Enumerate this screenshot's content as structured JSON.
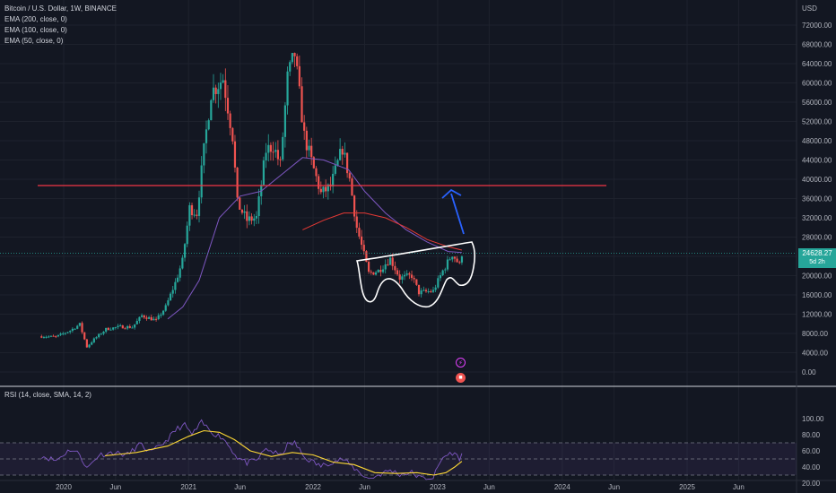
{
  "chart_data": [
    {
      "type": "candlestick",
      "title": "Bitcoin / U.S. Dollar, 1W, BINANCE",
      "currency": "USD",
      "ylim": [
        0,
        76000
      ],
      "y_ticks": [
        "72000.00",
        "68000.00",
        "64000.00",
        "60000.00",
        "56000.00",
        "52000.00",
        "48000.00",
        "44000.00",
        "40000.00",
        "36000.00",
        "32000.00",
        "28000.00",
        "24000.00",
        "20000.00",
        "16000.00",
        "12000.00",
        "8000.00",
        "4000.00",
        "0.00"
      ],
      "x_ticks": [
        "2020",
        "Jun",
        "2021",
        "Jun",
        "2022",
        "Jun",
        "2023",
        "Jun",
        "2024",
        "Jun",
        "2025",
        "Jun"
      ],
      "x_tick_dates": [
        "2020-01-01",
        "2020-06-01",
        "2021-01-01",
        "2021-06-01",
        "2022-01-01",
        "2022-06-01",
        "2023-01-01",
        "2023-06-01",
        "2024-01-01",
        "2024-06-01",
        "2025-01-01",
        "2025-06-01"
      ],
      "indicators": [
        "EMA (200, close, 0)",
        "EMA (100, close, 0)",
        "EMA (50, close, 0)"
      ],
      "last_price": "24628.27",
      "last_price_countdown": "5d 2h",
      "resistance_level": 38700,
      "colors": {
        "up": "#26a69a",
        "down": "#ef5350",
        "ema50": "#7e57c2",
        "ema100": "#e53935",
        "resistance": "#f23645",
        "arrow": "#2962ff",
        "annotation": "#ffffff"
      },
      "series": [
        {
          "date": "2019-10-28",
          "value": 7400
        },
        {
          "date": "2019-12-09",
          "value": 7300
        },
        {
          "date": "2020-01-20",
          "value": 8600
        },
        {
          "date": "2020-02-17",
          "value": 9900
        },
        {
          "date": "2020-03-09",
          "value": 5200
        },
        {
          "date": "2020-03-30",
          "value": 6800
        },
        {
          "date": "2020-05-04",
          "value": 8900
        },
        {
          "date": "2020-06-15",
          "value": 9400
        },
        {
          "date": "2020-07-20",
          "value": 9300
        },
        {
          "date": "2020-08-17",
          "value": 11700
        },
        {
          "date": "2020-09-28",
          "value": 10700
        },
        {
          "date": "2020-10-26",
          "value": 13500
        },
        {
          "date": "2020-11-23",
          "value": 18500
        },
        {
          "date": "2020-12-14",
          "value": 23000
        },
        {
          "date": "2021-01-04",
          "value": 34000
        },
        {
          "date": "2021-01-25",
          "value": 33000
        },
        {
          "date": "2021-02-15",
          "value": 46000
        },
        {
          "date": "2021-03-08",
          "value": 58000
        },
        {
          "date": "2021-04-12",
          "value": 61000
        },
        {
          "date": "2021-05-10",
          "value": 49000
        },
        {
          "date": "2021-05-24",
          "value": 35000
        },
        {
          "date": "2021-06-21",
          "value": 31500
        },
        {
          "date": "2021-07-19",
          "value": 32000
        },
        {
          "date": "2021-08-16",
          "value": 46000
        },
        {
          "date": "2021-09-06",
          "value": 47000
        },
        {
          "date": "2021-09-27",
          "value": 43000
        },
        {
          "date": "2021-10-18",
          "value": 61000
        },
        {
          "date": "2021-11-08",
          "value": 66000
        },
        {
          "date": "2021-12-06",
          "value": 49000
        },
        {
          "date": "2022-01-03",
          "value": 42000
        },
        {
          "date": "2022-01-24",
          "value": 37000
        },
        {
          "date": "2022-02-21",
          "value": 38500
        },
        {
          "date": "2022-03-28",
          "value": 46500
        },
        {
          "date": "2022-04-18",
          "value": 40000
        },
        {
          "date": "2022-05-09",
          "value": 30000
        },
        {
          "date": "2022-06-13",
          "value": 20500
        },
        {
          "date": "2022-07-11",
          "value": 21000
        },
        {
          "date": "2022-08-15",
          "value": 23500
        },
        {
          "date": "2022-09-12",
          "value": 19500
        },
        {
          "date": "2022-10-17",
          "value": 20000
        },
        {
          "date": "2022-11-07",
          "value": 16500
        },
        {
          "date": "2022-12-19",
          "value": 16800
        },
        {
          "date": "2023-01-16",
          "value": 21000
        },
        {
          "date": "2023-02-13",
          "value": 24500
        },
        {
          "date": "2023-03-06",
          "value": 22200
        },
        {
          "date": "2023-03-13",
          "value": 24628
        }
      ],
      "ema50": [
        {
          "date": "2020-11-01",
          "value": 11000
        },
        {
          "date": "2020-12-15",
          "value": 13500
        },
        {
          "date": "2021-02-01",
          "value": 19000
        },
        {
          "date": "2021-04-01",
          "value": 32000
        },
        {
          "date": "2021-06-01",
          "value": 36500
        },
        {
          "date": "2021-08-01",
          "value": 37500
        },
        {
          "date": "2021-10-01",
          "value": 41000
        },
        {
          "date": "2021-12-01",
          "value": 44500
        },
        {
          "date": "2022-02-01",
          "value": 44000
        },
        {
          "date": "2022-04-15",
          "value": 42000
        },
        {
          "date": "2022-06-01",
          "value": 37500
        },
        {
          "date": "2022-08-01",
          "value": 33000
        },
        {
          "date": "2022-10-01",
          "value": 29500
        },
        {
          "date": "2022-12-01",
          "value": 27000
        },
        {
          "date": "2023-02-01",
          "value": 25000
        },
        {
          "date": "2023-03-13",
          "value": 24800
        }
      ],
      "ema100": [
        {
          "date": "2021-12-01",
          "value": 29500
        },
        {
          "date": "2022-02-01",
          "value": 31500
        },
        {
          "date": "2022-04-01",
          "value": 33000
        },
        {
          "date": "2022-06-01",
          "value": 33000
        },
        {
          "date": "2022-08-01",
          "value": 32000
        },
        {
          "date": "2022-10-01",
          "value": 30000
        },
        {
          "date": "2022-12-01",
          "value": 27500
        },
        {
          "date": "2023-02-01",
          "value": 26000
        },
        {
          "date": "2023-03-13",
          "value": 25300
        }
      ]
    },
    {
      "type": "line",
      "title": "RSI (14, close, SMA, 14, 2)",
      "ylim": [
        20,
        100
      ],
      "y_ticks": [
        "100.00",
        "80.00",
        "60.00",
        "40.00",
        "20.00"
      ],
      "levels": [
        70,
        50,
        30
      ],
      "colors": {
        "rsi": "#7e57c2",
        "sma": "#fdd835",
        "band": "#7e57c2"
      },
      "series": [
        {
          "name": "RSI",
          "points": [
            {
              "date": "2019-10-28",
              "value": 54
            },
            {
              "date": "2019-12-09",
              "value": 48
            },
            {
              "date": "2020-01-20",
              "value": 62
            },
            {
              "date": "2020-02-17",
              "value": 56
            },
            {
              "date": "2020-03-09",
              "value": 38
            },
            {
              "date": "2020-04-13",
              "value": 55
            },
            {
              "date": "2020-05-25",
              "value": 58
            },
            {
              "date": "2020-07-06",
              "value": 55
            },
            {
              "date": "2020-08-10",
              "value": 68
            },
            {
              "date": "2020-09-14",
              "value": 58
            },
            {
              "date": "2020-10-26",
              "value": 72
            },
            {
              "date": "2020-11-30",
              "value": 88
            },
            {
              "date": "2020-12-21",
              "value": 92
            },
            {
              "date": "2021-01-11",
              "value": 80
            },
            {
              "date": "2021-02-08",
              "value": 95
            },
            {
              "date": "2021-03-15",
              "value": 82
            },
            {
              "date": "2021-04-12",
              "value": 76
            },
            {
              "date": "2021-05-24",
              "value": 52
            },
            {
              "date": "2021-06-21",
              "value": 45
            },
            {
              "date": "2021-07-19",
              "value": 48
            },
            {
              "date": "2021-08-16",
              "value": 63
            },
            {
              "date": "2021-09-27",
              "value": 54
            },
            {
              "date": "2021-10-18",
              "value": 67
            },
            {
              "date": "2021-11-08",
              "value": 70
            },
            {
              "date": "2021-12-06",
              "value": 52
            },
            {
              "date": "2022-01-24",
              "value": 41
            },
            {
              "date": "2022-02-21",
              "value": 46
            },
            {
              "date": "2022-03-28",
              "value": 50
            },
            {
              "date": "2022-05-09",
              "value": 36
            },
            {
              "date": "2022-06-13",
              "value": 25
            },
            {
              "date": "2022-07-11",
              "value": 30
            },
            {
              "date": "2022-08-15",
              "value": 36
            },
            {
              "date": "2022-09-12",
              "value": 31
            },
            {
              "date": "2022-10-17",
              "value": 33
            },
            {
              "date": "2022-11-14",
              "value": 26
            },
            {
              "date": "2022-12-19",
              "value": 27
            },
            {
              "date": "2023-01-16",
              "value": 52
            },
            {
              "date": "2023-02-13",
              "value": 58
            },
            {
              "date": "2023-03-06",
              "value": 51
            },
            {
              "date": "2023-03-13",
              "value": 55
            }
          ]
        },
        {
          "name": "SMA",
          "points": [
            {
              "date": "2020-05-01",
              "value": 54
            },
            {
              "date": "2020-08-01",
              "value": 58
            },
            {
              "date": "2020-11-01",
              "value": 66
            },
            {
              "date": "2021-01-01",
              "value": 78
            },
            {
              "date": "2021-02-15",
              "value": 85
            },
            {
              "date": "2021-04-01",
              "value": 83
            },
            {
              "date": "2021-05-15",
              "value": 74
            },
            {
              "date": "2021-07-01",
              "value": 60
            },
            {
              "date": "2021-09-01",
              "value": 53
            },
            {
              "date": "2021-11-01",
              "value": 58
            },
            {
              "date": "2022-01-01",
              "value": 55
            },
            {
              "date": "2022-03-01",
              "value": 46
            },
            {
              "date": "2022-05-01",
              "value": 43
            },
            {
              "date": "2022-07-01",
              "value": 33
            },
            {
              "date": "2022-09-01",
              "value": 32
            },
            {
              "date": "2022-11-01",
              "value": 33
            },
            {
              "date": "2022-12-20",
              "value": 30
            },
            {
              "date": "2023-01-25",
              "value": 33
            },
            {
              "date": "2023-02-20",
              "value": 40
            },
            {
              "date": "2023-03-13",
              "value": 47
            }
          ]
        }
      ]
    }
  ]
}
